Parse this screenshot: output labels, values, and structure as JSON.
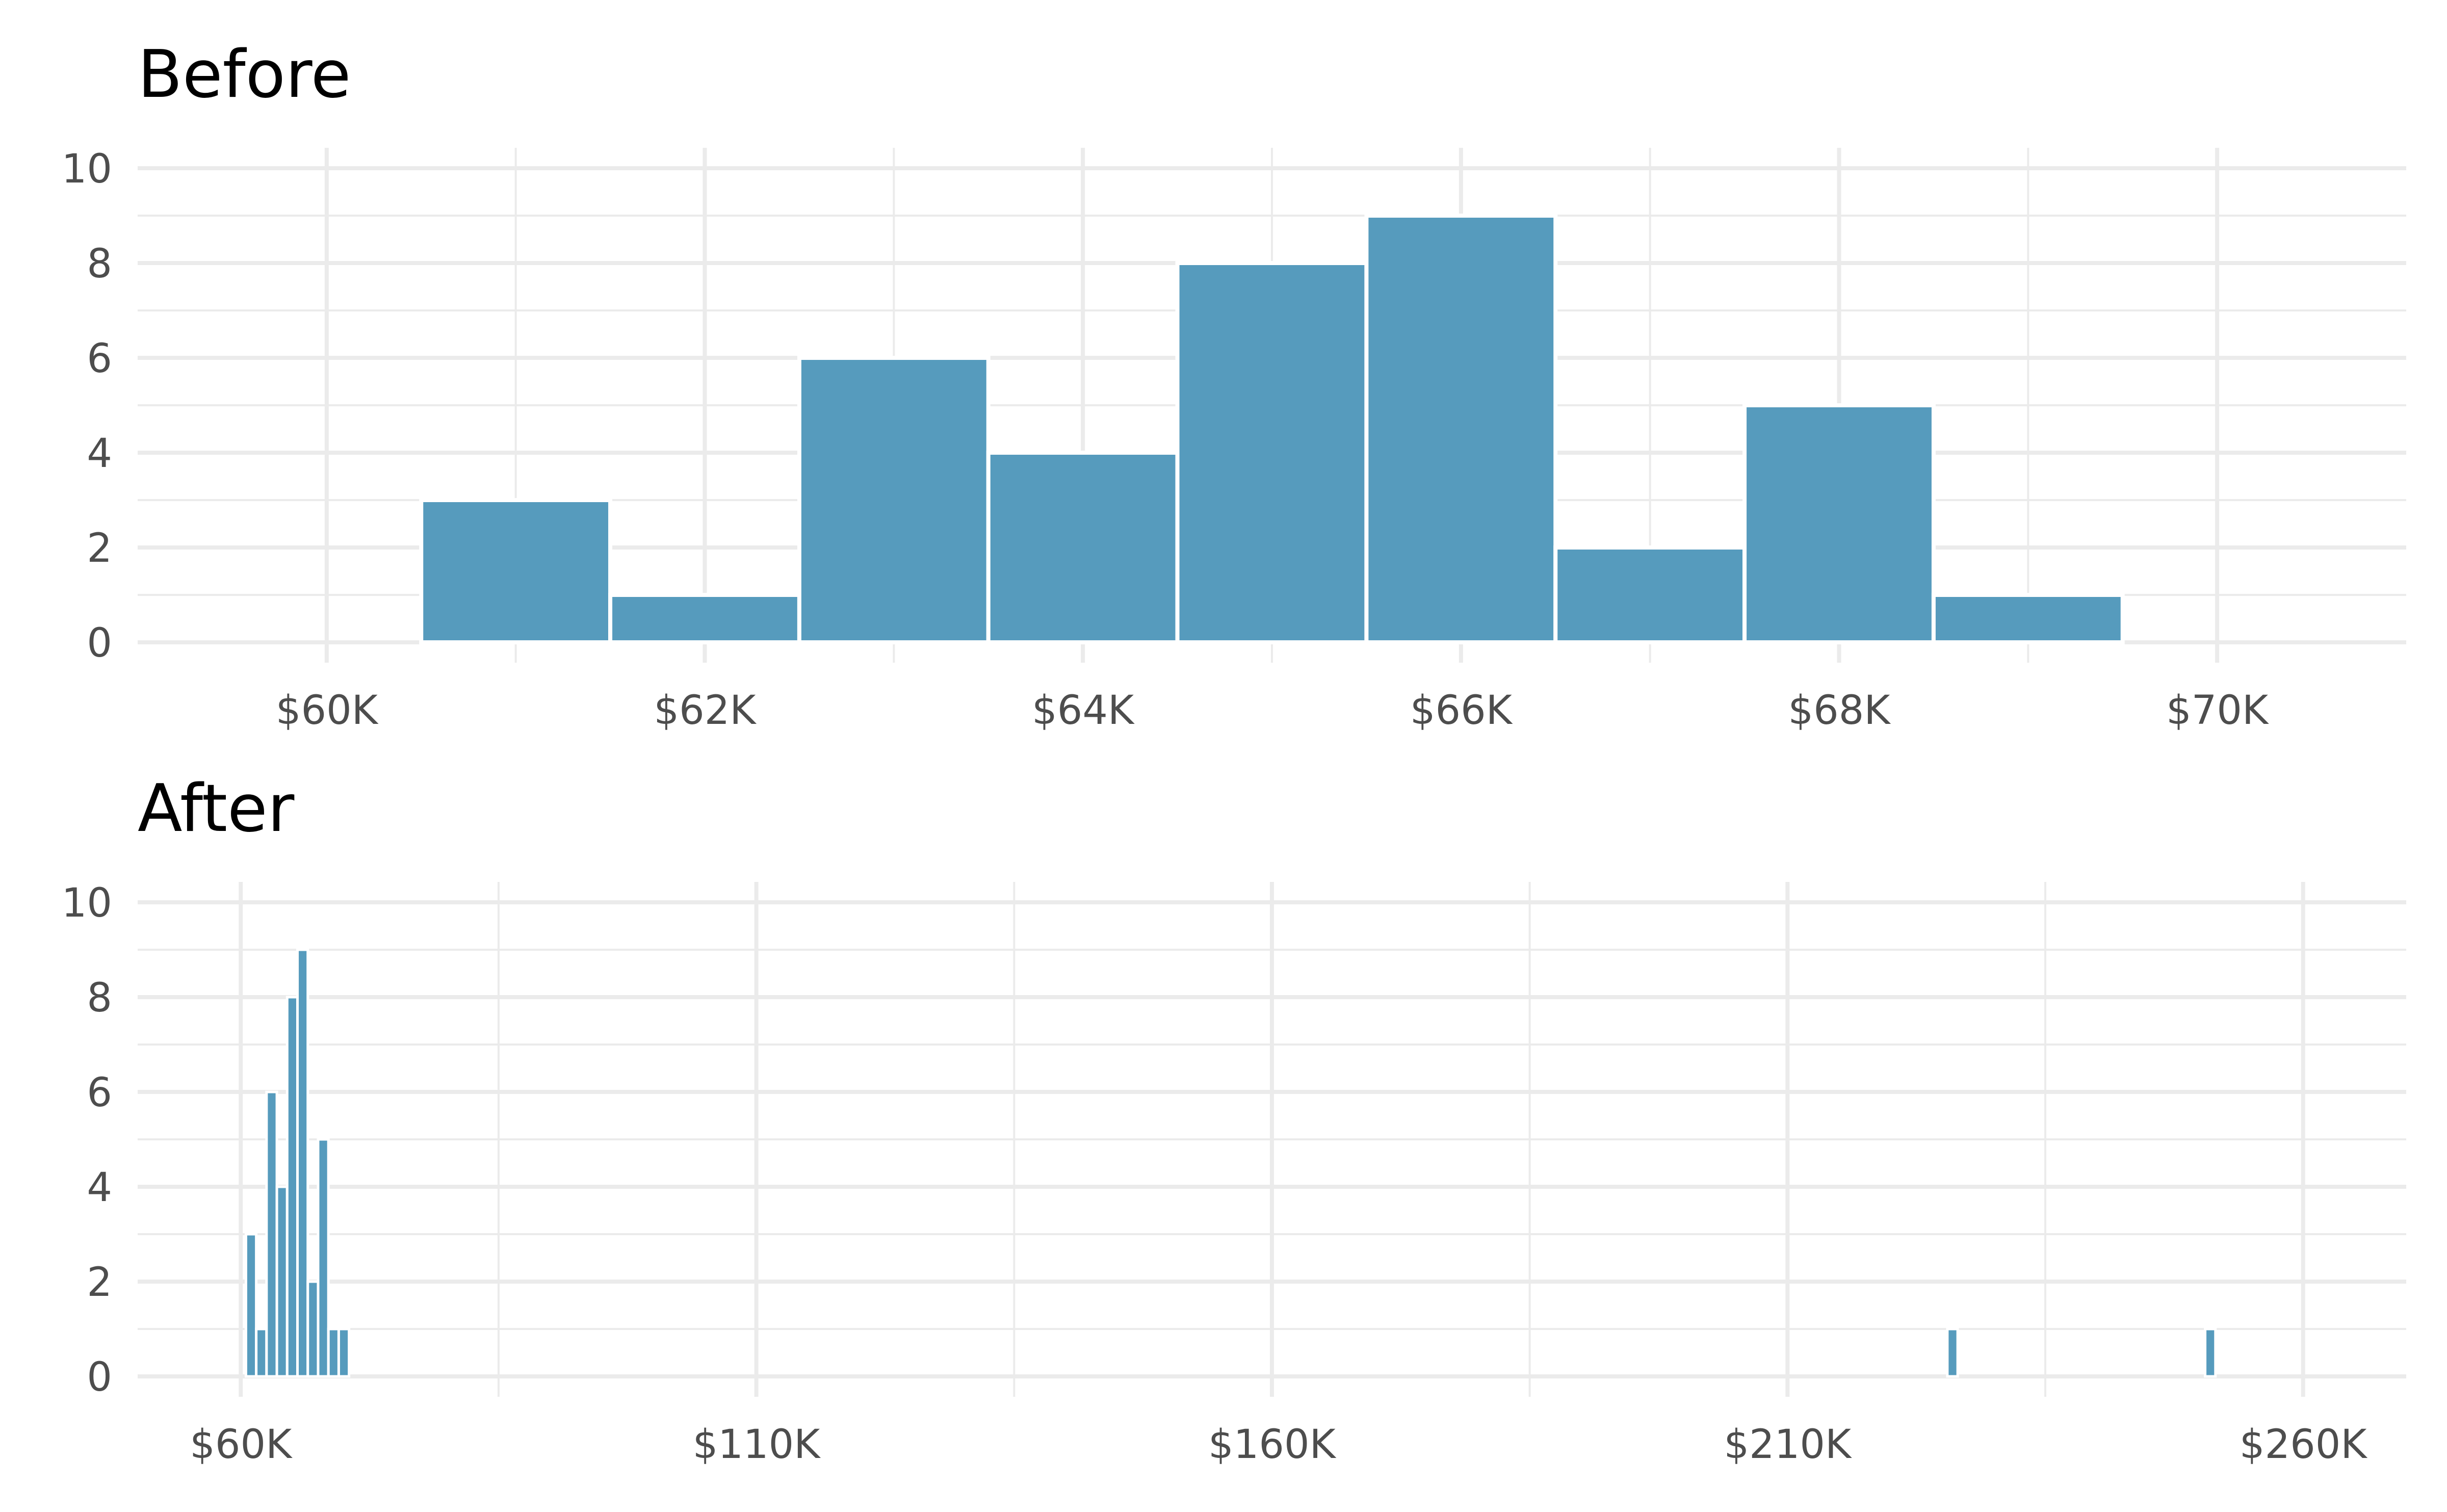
{
  "chart_data": [
    {
      "type": "bar",
      "title": "Before",
      "xlabel": "",
      "ylabel": "",
      "bin_width": 1000,
      "bins": [
        {
          "start": 60500,
          "end": 61500,
          "count": 3
        },
        {
          "start": 61500,
          "end": 62500,
          "count": 1
        },
        {
          "start": 62500,
          "end": 63500,
          "count": 6
        },
        {
          "start": 63500,
          "end": 64500,
          "count": 4
        },
        {
          "start": 64500,
          "end": 65500,
          "count": 8
        },
        {
          "start": 65500,
          "end": 66500,
          "count": 9
        },
        {
          "start": 66500,
          "end": 67500,
          "count": 2
        },
        {
          "start": 67500,
          "end": 68500,
          "count": 5
        },
        {
          "start": 68500,
          "end": 69500,
          "count": 1
        }
      ],
      "xlim": [
        59000,
        71000
      ],
      "ylim": [
        0,
        10
      ],
      "x_ticks": [
        {
          "value": 60000,
          "label": "$60K"
        },
        {
          "value": 62000,
          "label": "$62K"
        },
        {
          "value": 64000,
          "label": "$64K"
        },
        {
          "value": 66000,
          "label": "$66K"
        },
        {
          "value": 68000,
          "label": "$68K"
        },
        {
          "value": 70000,
          "label": "$70K"
        }
      ],
      "y_ticks": [
        {
          "value": 0,
          "label": "0"
        },
        {
          "value": 2,
          "label": "2"
        },
        {
          "value": 4,
          "label": "4"
        },
        {
          "value": 6,
          "label": "6"
        },
        {
          "value": 8,
          "label": "8"
        },
        {
          "value": 10,
          "label": "10"
        }
      ],
      "grid": true,
      "color": "#569bbd"
    },
    {
      "type": "bar",
      "title": "After",
      "xlabel": "",
      "ylabel": "",
      "bin_width": 1000,
      "bins": [
        {
          "start": 60500,
          "end": 61500,
          "count": 3
        },
        {
          "start": 61500,
          "end": 62500,
          "count": 1
        },
        {
          "start": 62500,
          "end": 63500,
          "count": 6
        },
        {
          "start": 63500,
          "end": 64500,
          "count": 4
        },
        {
          "start": 64500,
          "end": 65500,
          "count": 8
        },
        {
          "start": 65500,
          "end": 66500,
          "count": 9
        },
        {
          "start": 66500,
          "end": 67500,
          "count": 2
        },
        {
          "start": 67500,
          "end": 68500,
          "count": 5
        },
        {
          "start": 68500,
          "end": 69500,
          "count": 1
        },
        {
          "start": 69500,
          "end": 70500,
          "count": 1
        },
        {
          "start": 225500,
          "end": 226500,
          "count": 1
        },
        {
          "start": 250500,
          "end": 251500,
          "count": 1
        }
      ],
      "xlim": [
        50000,
        270000
      ],
      "ylim": [
        0,
        10
      ],
      "x_ticks": [
        {
          "value": 60000,
          "label": "$60K"
        },
        {
          "value": 110000,
          "label": "$110K"
        },
        {
          "value": 160000,
          "label": "$160K"
        },
        {
          "value": 210000,
          "label": "$210K"
        },
        {
          "value": 260000,
          "label": "$260K"
        }
      ],
      "y_ticks": [
        {
          "value": 0,
          "label": "0"
        },
        {
          "value": 2,
          "label": "2"
        },
        {
          "value": 4,
          "label": "4"
        },
        {
          "value": 6,
          "label": "6"
        },
        {
          "value": 8,
          "label": "8"
        },
        {
          "value": 10,
          "label": "10"
        }
      ],
      "grid": true,
      "color": "#569bbd"
    }
  ]
}
